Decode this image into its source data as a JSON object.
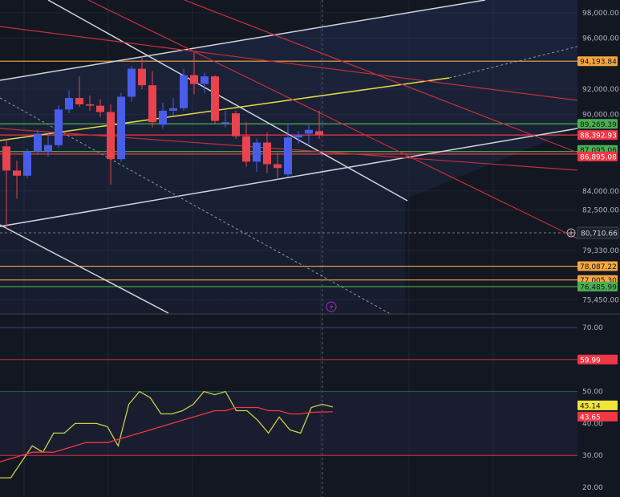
{
  "chart_data": [
    {
      "type": "candlestick",
      "price_axis": {
        "labels": [
          "98,000.00",
          "96,000.00",
          "94,193.84",
          "92,000.00",
          "90,000.00",
          "89,269.39",
          "88,392.93",
          "87,095.06",
          "86,895.08",
          "84,000.00",
          "82,500.00",
          "80,710.66",
          "79,330.00",
          "78,087.22",
          "77,005.30",
          "76,485.99",
          "75,450.00"
        ],
        "range": [
          74400,
          99000
        ]
      },
      "candles": [
        {
          "o": 87500,
          "h": 88100,
          "l": 81000,
          "c": 85600
        },
        {
          "o": 85600,
          "h": 86400,
          "l": 83400,
          "c": 85200
        },
        {
          "o": 85200,
          "h": 87300,
          "l": 85000,
          "c": 87100
        },
        {
          "o": 87100,
          "h": 88800,
          "l": 86800,
          "c": 88500
        },
        {
          "o": 87100,
          "h": 88600,
          "l": 86700,
          "c": 87600
        },
        {
          "o": 87600,
          "h": 90700,
          "l": 87400,
          "c": 90400
        },
        {
          "o": 90400,
          "h": 91900,
          "l": 90100,
          "c": 91300
        },
        {
          "o": 91300,
          "h": 93000,
          "l": 90600,
          "c": 90800
        },
        {
          "o": 90800,
          "h": 91500,
          "l": 90300,
          "c": 90700
        },
        {
          "o": 90700,
          "h": 91200,
          "l": 89800,
          "c": 90200
        },
        {
          "o": 90200,
          "h": 90800,
          "l": 84500,
          "c": 86500
        },
        {
          "o": 86500,
          "h": 91700,
          "l": 86300,
          "c": 91400
        },
        {
          "o": 91400,
          "h": 93800,
          "l": 91000,
          "c": 93600
        },
        {
          "o": 93600,
          "h": 94600,
          "l": 92000,
          "c": 92300
        },
        {
          "o": 92300,
          "h": 93400,
          "l": 89000,
          "c": 89400
        },
        {
          "o": 89200,
          "h": 90900,
          "l": 88900,
          "c": 90300
        },
        {
          "o": 90300,
          "h": 91300,
          "l": 89900,
          "c": 90500
        },
        {
          "o": 90500,
          "h": 93600,
          "l": 90300,
          "c": 93100
        },
        {
          "o": 93100,
          "h": 94900,
          "l": 91600,
          "c": 92400
        },
        {
          "o": 92400,
          "h": 93300,
          "l": 91700,
          "c": 93000
        },
        {
          "o": 93000,
          "h": 93100,
          "l": 89300,
          "c": 89500
        },
        {
          "o": 89300,
          "h": 90300,
          "l": 89000,
          "c": 89400
        },
        {
          "o": 90100,
          "h": 90300,
          "l": 88100,
          "c": 88300
        },
        {
          "o": 88300,
          "h": 89400,
          "l": 85900,
          "c": 86300
        },
        {
          "o": 86300,
          "h": 88100,
          "l": 85500,
          "c": 87800
        },
        {
          "o": 87800,
          "h": 88600,
          "l": 85400,
          "c": 86100
        },
        {
          "o": 86100,
          "h": 87000,
          "l": 84900,
          "c": 85800
        },
        {
          "o": 85300,
          "h": 89300,
          "l": 85100,
          "c": 88200
        },
        {
          "o": 88200,
          "h": 88700,
          "l": 87700,
          "c": 88400
        },
        {
          "o": 88500,
          "h": 89200,
          "l": 87700,
          "c": 88800
        },
        {
          "o": 88700,
          "h": 90300,
          "l": 88100,
          "c": 88400
        }
      ],
      "horizontal_levels": [
        {
          "value": 94193.84,
          "color": "#f5a742"
        },
        {
          "value": 89269.39,
          "color": "#4caf50"
        },
        {
          "value": 88392.93,
          "color": "#f23645"
        },
        {
          "value": 87095.06,
          "color": "#4caf50"
        },
        {
          "value": 86895.08,
          "color": "#f23645"
        },
        {
          "value": 78087.22,
          "color": "#f5a742"
        },
        {
          "value": 77005.3,
          "color": "#f5a742"
        },
        {
          "value": 76485.99,
          "color": "#4caf50"
        }
      ],
      "crosshair_value": 80710.66
    },
    {
      "type": "line",
      "y_axis": {
        "labels": [
          "70.00",
          "59.99",
          "50.00",
          "45.14",
          "43.65",
          "40.00",
          "30.00",
          "20.00"
        ],
        "range": [
          17,
          74
        ]
      },
      "reference_levels": [
        70,
        59.99,
        50,
        30
      ],
      "series": [
        {
          "color": "#c8cf43",
          "current": 45.14,
          "values": [
            23,
            23,
            28,
            33,
            31,
            37,
            37,
            40,
            40,
            40,
            39,
            33,
            46,
            50,
            48,
            43,
            43,
            44,
            46,
            50,
            49,
            50,
            44,
            44,
            41,
            37,
            42,
            38,
            37,
            45,
            46,
            45.14
          ]
        },
        {
          "color": "#f23645",
          "current": 43.65,
          "values": [
            28,
            29,
            30,
            31,
            31,
            31,
            32,
            33,
            34,
            34,
            34,
            35,
            36,
            37,
            38,
            39,
            40,
            41,
            42,
            43,
            44,
            44,
            45,
            45,
            45,
            44,
            44,
            43,
            43,
            43.5,
            43.6,
            43.65
          ]
        }
      ]
    }
  ]
}
